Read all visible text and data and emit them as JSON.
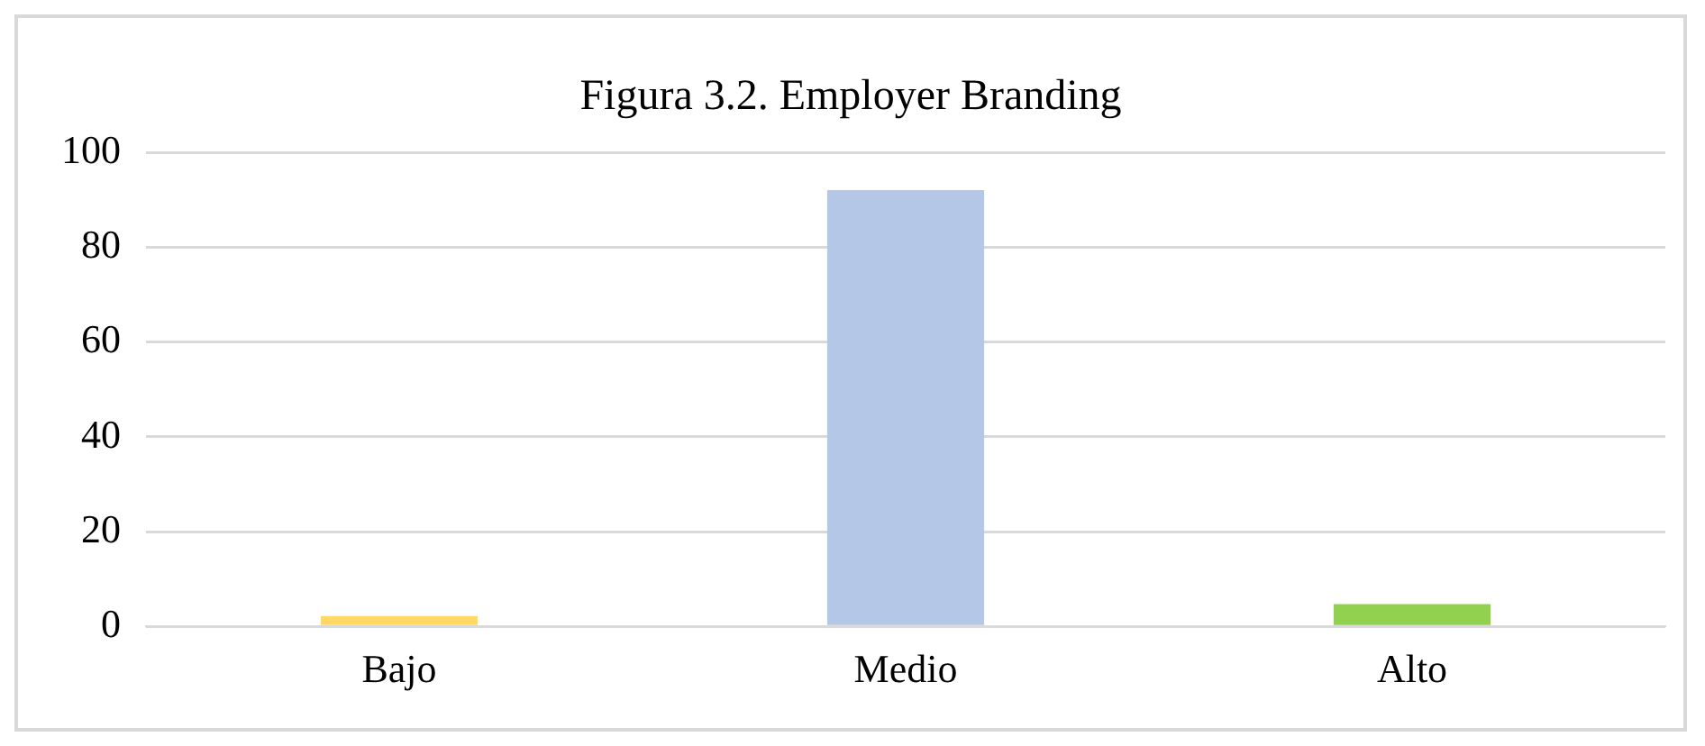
{
  "chart_data": {
    "type": "bar",
    "title": "Figura 3.2. Employer Branding",
    "categories": [
      "Bajo",
      "Medio",
      "Alto"
    ],
    "values": [
      2.2,
      92.1,
      4.7
    ],
    "colors": [
      "#ffd966",
      "#b4c7e7",
      "#92d050"
    ],
    "ylim": [
      0,
      100
    ],
    "yticks": [
      0,
      20,
      40,
      60,
      80,
      100
    ],
    "grid": "y",
    "legend": false
  }
}
